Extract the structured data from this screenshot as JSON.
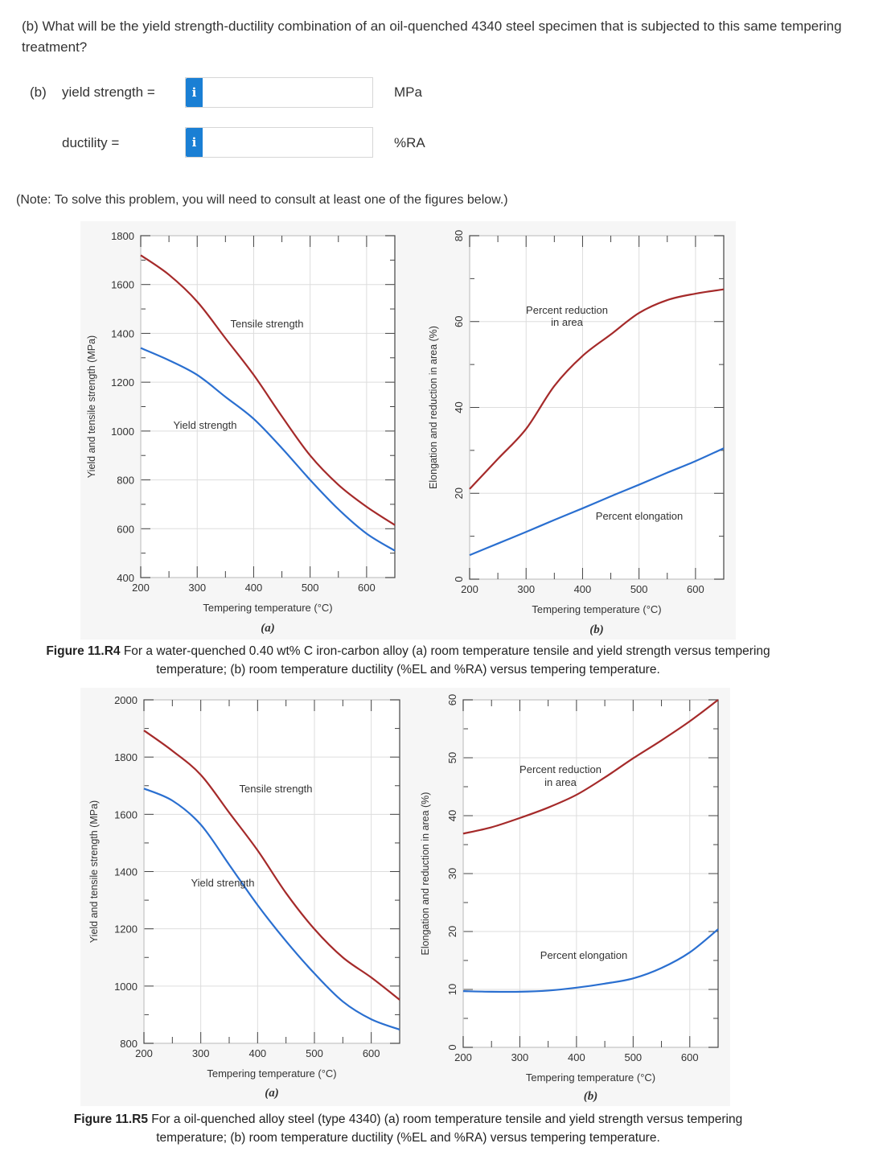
{
  "question": {
    "text": "(b) What will be the yield strength-ductility combination of an oil-quenched 4340 steel specimen that is subjected to this same tempering treatment?",
    "part_label": "(b)",
    "yield_label": "yield strength =",
    "yield_value": "",
    "yield_unit": "MPa",
    "ductility_label": "ductility =",
    "ductility_value": "",
    "ductility_unit": "%RA",
    "info_icon": "i"
  },
  "note": "(Note: To solve this problem, you will need to consult at least one of the figures below.)",
  "colors": {
    "tensile": "#a52a2a",
    "yield": "#2a6fd0",
    "info_button": "#1a7fd4"
  },
  "figures": [
    {
      "caption_bold": "Figure 11.R4",
      "caption": " For a water-quenched 0.40 wt% C iron-carbon alloy (a) room temperature tensile and yield strength versus tempering temperature; (b) room temperature ductility (%EL and %RA) versus tempering temperature."
    },
    {
      "caption_bold": "Figure 11.R5",
      "caption": " For a oil-quenched alloy steel (type 4340) (a) room temperature tensile and yield strength versus tempering temperature; (b) room temperature ductility (%EL and %RA) versus tempering temperature."
    }
  ],
  "chart_data": [
    {
      "type": "line",
      "panel": "(a)",
      "xlabel": "Tempering temperature (°C)",
      "ylabel": "Yield and tensile strength (MPa)",
      "xlim": [
        200,
        650
      ],
      "ylim": [
        400,
        1800
      ],
      "xticks": [
        200,
        300,
        400,
        500,
        600
      ],
      "yticks": [
        400,
        600,
        800,
        1000,
        1200,
        1400,
        1600,
        1800
      ],
      "grid": true,
      "x": [
        200,
        250,
        300,
        350,
        400,
        450,
        500,
        550,
        600,
        650
      ],
      "series": [
        {
          "name": "Tensile strength",
          "color": "#a52a2a",
          "values": [
            1720,
            1640,
            1530,
            1380,
            1230,
            1060,
            900,
            780,
            690,
            615
          ]
        },
        {
          "name": "Yield strength",
          "color": "#2a6fd0",
          "values": [
            1340,
            1290,
            1230,
            1140,
            1050,
            930,
            800,
            680,
            580,
            510
          ]
        }
      ]
    },
    {
      "type": "line",
      "panel": "(b)",
      "xlabel": "Tempering temperature (°C)",
      "ylabel": "Elongation and reduction in area (%)",
      "xlim": [
        200,
        650
      ],
      "ylim": [
        0,
        80
      ],
      "xticks": [
        200,
        300,
        400,
        500,
        600
      ],
      "yticks": [
        0,
        20,
        40,
        60,
        80
      ],
      "grid": true,
      "x": [
        200,
        250,
        300,
        350,
        400,
        450,
        500,
        550,
        600,
        650
      ],
      "series": [
        {
          "name": "Percent reduction in area",
          "color": "#a52a2a",
          "values": [
            21,
            28,
            35,
            45,
            52,
            57,
            62,
            65,
            66.5,
            67.5
          ]
        },
        {
          "name": "Percent elongation",
          "color": "#2a6fd0",
          "values": [
            5.6,
            8.3,
            11,
            13.8,
            16.5,
            19.3,
            22,
            24.8,
            27.5,
            30.5
          ]
        }
      ]
    },
    {
      "type": "line",
      "panel": "(a)",
      "xlabel": "Tempering temperature (°C)",
      "ylabel": "Yield and tensile strength (MPa)",
      "xlim": [
        200,
        650
      ],
      "ylim": [
        800,
        2000
      ],
      "xticks": [
        200,
        300,
        400,
        500,
        600
      ],
      "yticks": [
        800,
        1000,
        1200,
        1400,
        1600,
        1800,
        2000
      ],
      "grid": true,
      "x": [
        200,
        250,
        300,
        350,
        400,
        450,
        500,
        550,
        600,
        650
      ],
      "series": [
        {
          "name": "Tensile strength",
          "color": "#a52a2a",
          "values": [
            1893,
            1822,
            1738,
            1606,
            1474,
            1325,
            1199,
            1100,
            1030,
            952
          ]
        },
        {
          "name": "Yield strength",
          "color": "#2a6fd0",
          "values": [
            1690,
            1648,
            1564,
            1424,
            1283,
            1157,
            1044,
            946,
            884,
            848
          ]
        }
      ]
    },
    {
      "type": "line",
      "panel": "(b)",
      "xlabel": "Tempering temperature (°C)",
      "ylabel": "Elongation and reduction in area (%)",
      "xlim": [
        200,
        650
      ],
      "ylim": [
        0,
        60
      ],
      "xticks": [
        200,
        300,
        400,
        500,
        600
      ],
      "yticks": [
        0,
        10,
        20,
        30,
        40,
        50,
        60
      ],
      "grid": true,
      "x": [
        200,
        250,
        300,
        350,
        400,
        450,
        500,
        550,
        600,
        650
      ],
      "series": [
        {
          "name": "Percent reduction in area",
          "color": "#a52a2a",
          "values": [
            36.9,
            38,
            39.6,
            41.4,
            43.6,
            46.6,
            49.9,
            53,
            56.3,
            60
          ]
        },
        {
          "name": "Percent elongation",
          "color": "#2a6fd0",
          "values": [
            9.7,
            9.6,
            9.6,
            9.8,
            10.3,
            11,
            11.9,
            13.7,
            16.4,
            20.4
          ]
        }
      ]
    }
  ]
}
